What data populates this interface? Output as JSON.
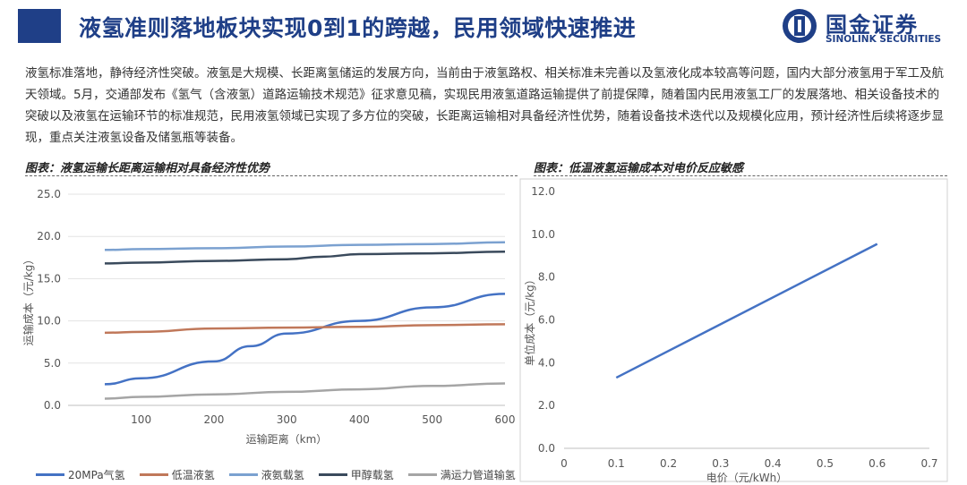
{
  "header": {
    "title": "液氢准则落地板块实现0到1的跨越，民用领域快速推进",
    "logo_cn": "国金证券",
    "logo_en": "SINOLINK SECURITIES"
  },
  "body": {
    "text": "液氢标准落地，静待经济性突破。液氢是大规模、长距离氢储运的发展方向，当前由于液氢路权、相关标准未完善以及氢液化成本较高等问题，国内大部分液氢用于军工及航天领域。5月，交通部发布《氢气（含液氢）道路运输技术规范》征求意见稿，实现民用液氢道路运输提供了前提保障，随着国内民用液氢工厂的发展落地、相关设备技术的突破以及液氢在运输环节的标准规范，民用液氢领域已实现了多方位的突破，长距离运输相对具备经济性优势，随着设备技术迭代以及规模化应用，预计经济性后续将逐步显现，重点关注液氢设备及储氢瓶等装备。"
  },
  "colors": {
    "brand": "#1f3f87",
    "series": [
      "#4472c4",
      "#c0785a",
      "#7ba1d0",
      "#3a4a5c",
      "#a5a5a5"
    ],
    "right_line": "#4472c4"
  },
  "chart_data": [
    {
      "type": "line",
      "caption": "图表：液氢运输长距离运输相对具备经济性优势",
      "xlabel": "运输距离（km）",
      "ylabel": "运输成本（元/kg）",
      "xlim": [
        50,
        600
      ],
      "ylim": [
        0,
        25
      ],
      "x_ticks": [
        "100",
        "200",
        "300",
        "400",
        "500",
        "600"
      ],
      "x_tick_values": [
        100,
        200,
        300,
        400,
        500,
        600
      ],
      "y_ticks": [
        "0.0",
        "5.0",
        "10.0",
        "15.0",
        "20.0",
        "25.0"
      ],
      "y_tick_values": [
        0,
        5,
        10,
        15,
        20,
        25
      ],
      "grid": true,
      "legend_position": "bottom",
      "series": [
        {
          "name": "20MPa气氢",
          "x": [
            50,
            100,
            200,
            250,
            300,
            400,
            500,
            600
          ],
          "values": [
            2.5,
            3.2,
            5.2,
            7.0,
            8.5,
            10.0,
            11.6,
            13.2
          ]
        },
        {
          "name": "低温液氢",
          "x": [
            50,
            100,
            200,
            300,
            400,
            500,
            600
          ],
          "values": [
            8.6,
            8.7,
            9.1,
            9.2,
            9.3,
            9.5,
            9.6
          ]
        },
        {
          "name": "液氨载氢",
          "x": [
            50,
            100,
            200,
            300,
            400,
            500,
            600
          ],
          "values": [
            18.4,
            18.5,
            18.6,
            18.8,
            19.0,
            19.1,
            19.3
          ]
        },
        {
          "name": "甲醇载氢",
          "x": [
            50,
            100,
            200,
            300,
            350,
            400,
            500,
            600
          ],
          "values": [
            16.8,
            16.9,
            17.1,
            17.3,
            17.6,
            17.9,
            18.0,
            18.2
          ]
        },
        {
          "name": "满运力管道输氢",
          "x": [
            50,
            100,
            200,
            300,
            400,
            500,
            600
          ],
          "values": [
            0.8,
            1.0,
            1.3,
            1.6,
            1.9,
            2.3,
            2.6
          ]
        }
      ]
    },
    {
      "type": "line",
      "caption": "图表：低温液氢运输成本对电价反应敏感",
      "xlabel": "电价（元/kWh）",
      "ylabel": "单位成本（元/kg）",
      "xlim": [
        0,
        0.7
      ],
      "ylim": [
        0,
        12
      ],
      "x_ticks": [
        "0",
        "0.1",
        "0.2",
        "0.3",
        "0.4",
        "0.5",
        "0.6",
        "0.7"
      ],
      "x_tick_values": [
        0,
        0.1,
        0.2,
        0.3,
        0.4,
        0.5,
        0.6,
        0.7
      ],
      "y_ticks": [
        "0.0",
        "2.0",
        "4.0",
        "6.0",
        "8.0",
        "10.0",
        "12.0"
      ],
      "y_tick_values": [
        0,
        2,
        4,
        6,
        8,
        10,
        12
      ],
      "grid": false,
      "series": [
        {
          "x": [
            0.1,
            0.6
          ],
          "values": [
            3.3,
            9.55
          ]
        }
      ]
    }
  ]
}
